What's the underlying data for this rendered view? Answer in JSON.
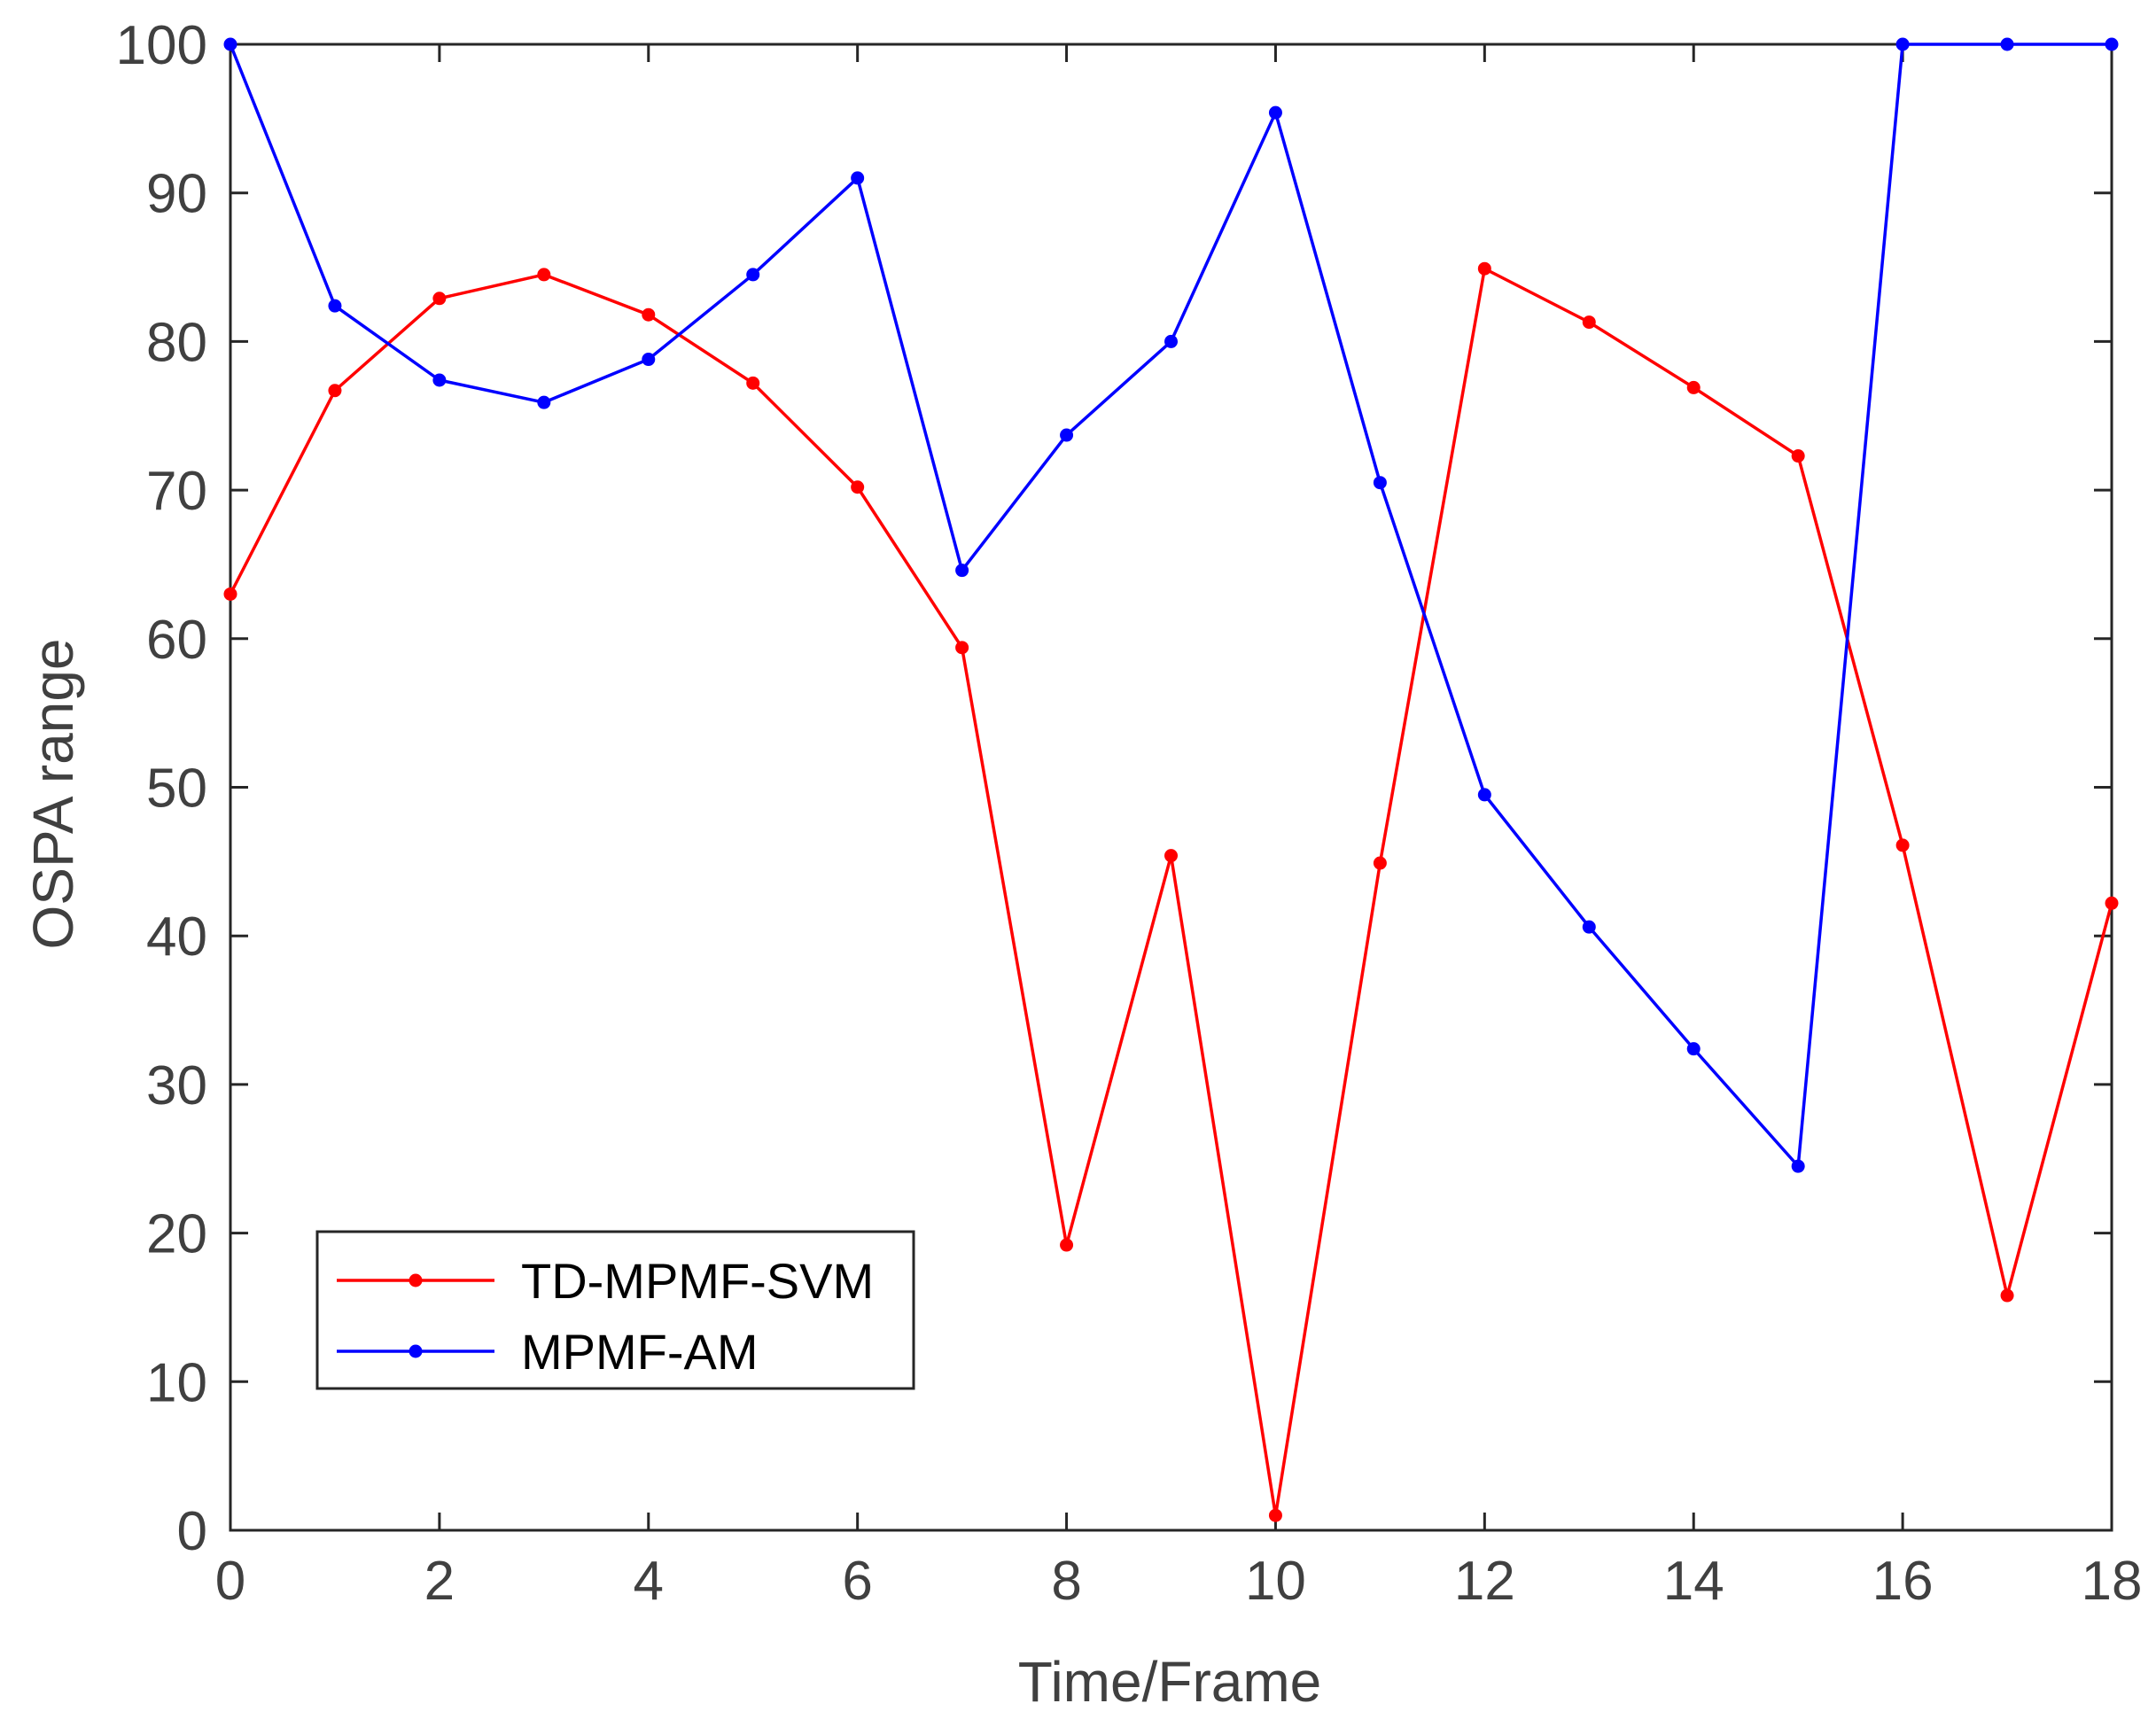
{
  "chart_data": {
    "type": "line",
    "xlabel": "Time/Frame",
    "ylabel": "OSPA range",
    "xlim": [
      0,
      18
    ],
    "ylim": [
      0,
      100
    ],
    "xticks": [
      0,
      2,
      4,
      6,
      8,
      10,
      12,
      14,
      16,
      18
    ],
    "yticks": [
      0,
      10,
      20,
      30,
      40,
      50,
      60,
      70,
      80,
      90,
      100
    ],
    "grid": false,
    "legend_position": "bottom-left",
    "x": [
      0,
      1,
      2,
      3,
      4,
      5,
      6,
      7,
      8,
      9,
      10,
      11,
      12,
      13,
      14,
      15,
      16,
      17,
      18
    ],
    "series": [
      {
        "name": "TD-MPMF-SVM",
        "color": "#ff0000",
        "marker": "dot",
        "values": [
          63,
          76.7,
          82.9,
          84.5,
          81.8,
          77.2,
          70.2,
          59.4,
          19.2,
          45.4,
          1,
          44.9,
          84.9,
          81.3,
          76.9,
          72.3,
          46.1,
          15.8,
          42.2
        ]
      },
      {
        "name": "MPMF-AM",
        "color": "#0000ff",
        "marker": "dot",
        "values": [
          100,
          82.4,
          77.4,
          75.9,
          78.8,
          84.5,
          91,
          64.6,
          73.7,
          80,
          95.4,
          70.5,
          49.5,
          40.6,
          32.4,
          24.5,
          100,
          100,
          100
        ]
      }
    ]
  }
}
